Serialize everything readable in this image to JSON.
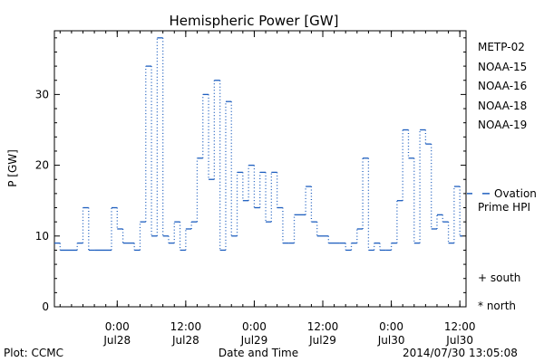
{
  "chart_data": {
    "type": "line",
    "title": "Hemispheric Power [GW]",
    "ylabel": "P [GW]",
    "xlabel": "Date and Time",
    "ylim": [
      0,
      39
    ],
    "yticks": [
      0,
      10,
      20,
      30
    ],
    "xlim": [
      "2014-07-27T13:00",
      "2014-07-30T13:05"
    ],
    "xticks": [
      {
        "time": "2014-07-28T00:00",
        "hour": "0:00",
        "day": "Jul28"
      },
      {
        "time": "2014-07-28T12:00",
        "hour": "12:00",
        "day": "Jul28"
      },
      {
        "time": "2014-07-29T00:00",
        "hour": "0:00",
        "day": "Jul29"
      },
      {
        "time": "2014-07-29T12:00",
        "hour": "12:00",
        "day": "Jul29"
      },
      {
        "time": "2014-07-30T00:00",
        "hour": "0:00",
        "day": "Jul30"
      },
      {
        "time": "2014-07-30T12:00",
        "hour": "12:00",
        "day": "Jul30"
      }
    ],
    "grid": false,
    "legend_position": "right",
    "series": [
      {
        "name": "METP-02",
        "color": "#000000",
        "x": [],
        "values": []
      },
      {
        "name": "NOAA-15",
        "color": "#1f3fbf",
        "x": [],
        "values": []
      },
      {
        "name": "NOAA-16",
        "color": "#19b2d8",
        "x": [],
        "values": []
      },
      {
        "name": "NOAA-18",
        "color": "#22cc66",
        "x": [],
        "values": []
      },
      {
        "name": "NOAA-19",
        "color": "#f0a020",
        "x": [],
        "values": []
      },
      {
        "name": "Ovation Prime HPI",
        "color": "#1f5fbf",
        "x": [
          "2014-07-27T13:00",
          "2014-07-27T14:00",
          "2014-07-27T17:00",
          "2014-07-27T18:00",
          "2014-07-27T19:00",
          "2014-07-27T20:00",
          "2014-07-27T23:00",
          "2014-07-28T00:00",
          "2014-07-28T01:00",
          "2014-07-28T03:00",
          "2014-07-28T04:00",
          "2014-07-28T05:00",
          "2014-07-28T06:00",
          "2014-07-28T07:00",
          "2014-07-28T08:00",
          "2014-07-28T09:00",
          "2014-07-28T10:00",
          "2014-07-28T11:00",
          "2014-07-28T12:00",
          "2014-07-28T13:00",
          "2014-07-28T14:00",
          "2014-07-28T15:00",
          "2014-07-28T16:00",
          "2014-07-28T17:00",
          "2014-07-28T18:00",
          "2014-07-28T19:00",
          "2014-07-28T20:00",
          "2014-07-28T21:00",
          "2014-07-28T22:00",
          "2014-07-28T23:00",
          "2014-07-29T00:00",
          "2014-07-29T01:00",
          "2014-07-29T02:00",
          "2014-07-29T03:00",
          "2014-07-29T04:00",
          "2014-07-29T05:00",
          "2014-07-29T06:00",
          "2014-07-29T07:00",
          "2014-07-29T09:00",
          "2014-07-29T10:00",
          "2014-07-29T11:00",
          "2014-07-29T12:00",
          "2014-07-29T13:00",
          "2014-07-29T15:00",
          "2014-07-29T16:00",
          "2014-07-29T17:00",
          "2014-07-29T18:00",
          "2014-07-29T19:00",
          "2014-07-29T20:00",
          "2014-07-29T21:00",
          "2014-07-29T22:00",
          "2014-07-29T23:00",
          "2014-07-30T00:00",
          "2014-07-30T01:00",
          "2014-07-30T02:00",
          "2014-07-30T03:00",
          "2014-07-30T04:00",
          "2014-07-30T05:00",
          "2014-07-30T06:00",
          "2014-07-30T07:00",
          "2014-07-30T08:00",
          "2014-07-30T09:00",
          "2014-07-30T10:00",
          "2014-07-30T11:00",
          "2014-07-30T12:00"
        ],
        "values": [
          9,
          8,
          9,
          14,
          8,
          8,
          14,
          11,
          9,
          8,
          12,
          34,
          10,
          38,
          10,
          9,
          12,
          8,
          11,
          12,
          21,
          30,
          18,
          32,
          8,
          29,
          10,
          19,
          15,
          20,
          14,
          19,
          12,
          19,
          14,
          9,
          9,
          13,
          17,
          12,
          10,
          10,
          9,
          9,
          8,
          9,
          11,
          21,
          8,
          9,
          8,
          8,
          9,
          15,
          25,
          21,
          9,
          25,
          23,
          11,
          13,
          12,
          9,
          17,
          10
        ],
        "last_value": 16
      }
    ],
    "annotations": [
      "+ south",
      "* north"
    ],
    "footer_left": "Plot: CCMC",
    "footer_right": "2014/07/30 13:05:08"
  }
}
